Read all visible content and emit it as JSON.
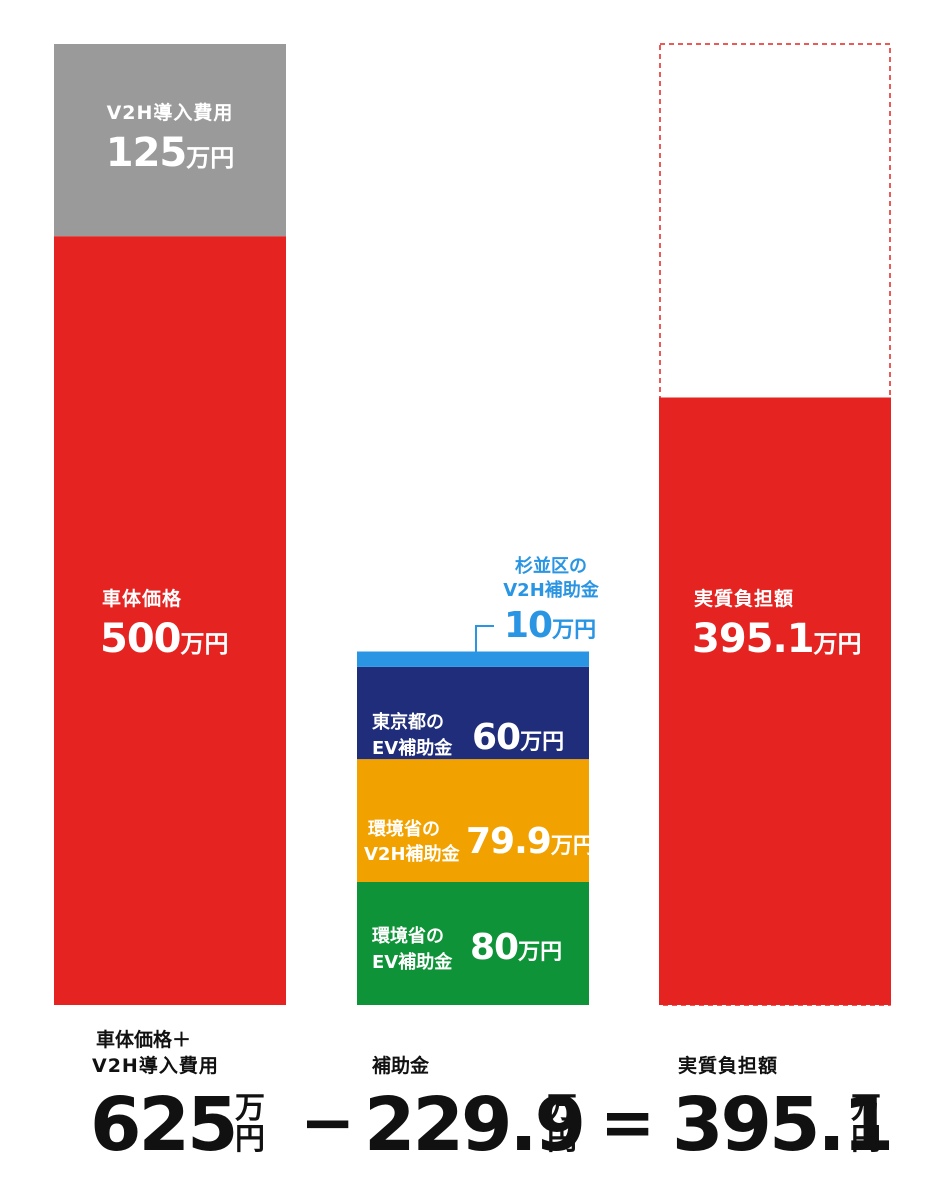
{
  "chart_data": {
    "type": "bar",
    "stacked": true,
    "colors": {
      "vehicle": "#e52421",
      "v2h_cost": "#9a9a9a",
      "suginami": "#2a95e3",
      "tokyo": "#1f2d7a",
      "moe_v2h": "#f2a200",
      "moe_ev": "#0f9338",
      "net_burden": "#e52421",
      "dashed_outline": "#e52421"
    },
    "bars": [
      {
        "name": "cost",
        "segments": [
          {
            "key": "vehicle",
            "label": "車体価格",
            "value": 500,
            "value_text": "500",
            "unit": "万円"
          },
          {
            "key": "v2h_cost",
            "label": "V2H導入費用",
            "value": 125,
            "value_text": "125",
            "unit": "万円"
          }
        ]
      },
      {
        "name": "subsidies",
        "segments": [
          {
            "key": "moe_ev",
            "label1": "環境省の",
            "label2": "EV補助金",
            "value": 80,
            "value_text": "80",
            "unit": "万円"
          },
          {
            "key": "moe_v2h",
            "label1": "環境省の",
            "label2": "V2H補助金",
            "value": 79.9,
            "value_text": "79.9",
            "unit": "万円"
          },
          {
            "key": "tokyo",
            "label1": "東京都の",
            "label2": "EV補助金",
            "value": 60,
            "value_text": "60",
            "unit": "万円"
          },
          {
            "key": "suginami",
            "label1": "杉並区の",
            "label2": "V2H補助金",
            "value": 10,
            "value_text": "10",
            "unit": "万円"
          }
        ]
      },
      {
        "name": "net",
        "segments": [
          {
            "key": "net_burden",
            "label": "実質負担額",
            "value": 395.1,
            "value_text": "395.1",
            "unit": "万円"
          }
        ],
        "dashed_reference": 625
      }
    ],
    "ylim": [
      0,
      625
    ]
  },
  "summary": {
    "cost_caption_1": "車体価格＋",
    "cost_caption_2": "V2H導入費用",
    "cost_value": "625",
    "minus": "−",
    "subsidy_caption": "補助金",
    "subsidy_value": "229.9",
    "equals": "=",
    "net_caption": "実質負担額",
    "net_value": "395.1",
    "unit_top": "万",
    "unit_bottom": "円"
  }
}
